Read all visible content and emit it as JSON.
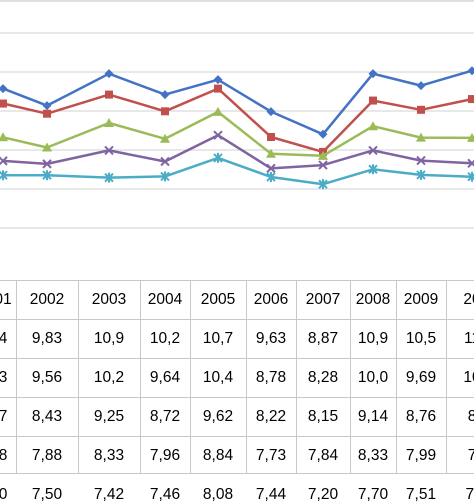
{
  "chart_data": {
    "type": "line",
    "grid": true,
    "legend": "none",
    "ylim": [
      5.8,
      13.3
    ],
    "categories": [
      "01",
      "2002",
      "2003",
      "2004",
      "2005",
      "2006",
      "2007",
      "2008",
      "2009",
      "20"
    ],
    "table_rows": [
      [
        "4",
        "9,83",
        "10,9",
        "10,2",
        "10,7",
        "9,63",
        "8,87",
        "10,9",
        "10,5",
        "11"
      ],
      [
        "3",
        "9,56",
        "10,2",
        "9,64",
        "10,4",
        "8,78",
        "8,28",
        "10,0",
        "9,69",
        "10"
      ],
      [
        "7",
        "8,43",
        "9,25",
        "8,72",
        "9,62",
        "8,22",
        "8,15",
        "9,14",
        "8,76",
        "8"
      ],
      [
        "8",
        "7,88",
        "8,33",
        "7,96",
        "8,84",
        "7,73",
        "7,84",
        "8,33",
        "7,99",
        "7"
      ],
      [
        "0",
        "7,50",
        "7,42",
        "7,46",
        "8,08",
        "7,44",
        "7,20",
        "7,70",
        "7,51",
        "7,"
      ]
    ],
    "series": [
      {
        "color": "#4472c4",
        "marker": "diamond",
        "values": [
          10.4,
          9.83,
          10.9,
          10.2,
          10.7,
          9.63,
          8.87,
          10.9,
          10.5,
          11.0
        ]
      },
      {
        "color": "#c0504d",
        "marker": "square",
        "values": [
          9.9,
          9.56,
          10.2,
          9.64,
          10.4,
          8.78,
          8.28,
          10.0,
          9.69,
          10.05
        ]
      },
      {
        "color": "#9bbb59",
        "marker": "triangle",
        "values": [
          8.77,
          8.43,
          9.25,
          8.72,
          9.62,
          8.22,
          8.15,
          9.14,
          8.76,
          8.75
        ]
      },
      {
        "color": "#8064a2",
        "marker": "x",
        "values": [
          7.98,
          7.88,
          8.33,
          7.96,
          8.84,
          7.73,
          7.84,
          8.33,
          7.99,
          7.9
        ]
      },
      {
        "color": "#4bacc6",
        "marker": "star",
        "values": [
          7.5,
          7.5,
          7.42,
          7.46,
          8.08,
          7.44,
          7.2,
          7.7,
          7.51,
          7.45
        ]
      }
    ]
  }
}
